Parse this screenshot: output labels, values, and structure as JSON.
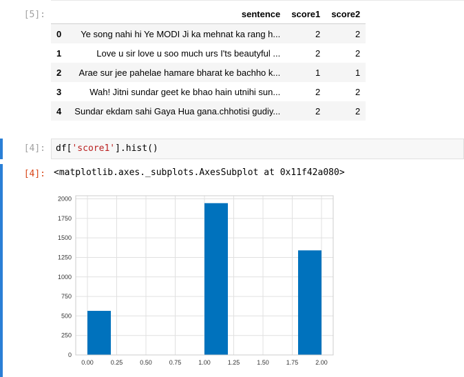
{
  "cells": [
    {
      "prompt": "[5]:",
      "table": {
        "columns": [
          "",
          "sentence",
          "score1",
          "score2"
        ],
        "rows": [
          {
            "index": "0",
            "sentence": "Ye song nahi hi Ye MODI Ji ka mehnat ka rang h...",
            "score1": "2",
            "score2": "2"
          },
          {
            "index": "1",
            "sentence": "Love u sir love u soo much urs I'ts beautyful ...",
            "score1": "2",
            "score2": "2"
          },
          {
            "index": "2",
            "sentence": "Arae sur jee pahelae hamare bharat ke bachho k...",
            "score1": "1",
            "score2": "1"
          },
          {
            "index": "3",
            "sentence": "Wah! Jitni sundar geet ke bhao hain utnihi sun...",
            "score1": "2",
            "score2": "2"
          },
          {
            "index": "4",
            "sentence": "Sundar ekdam sahi Gaya Hua gana.chhotisi gudiy...",
            "score1": "2",
            "score2": "2"
          }
        ]
      }
    },
    {
      "prompt_in": "[4]:",
      "code": {
        "var": "df[",
        "key": "'score1'",
        "rest": "].hist()"
      },
      "prompt_out": "[4]:",
      "output_text": "<matplotlib.axes._subplots.AxesSubplot at 0x11f42a080>"
    }
  ],
  "chart_data": {
    "type": "bar",
    "bins": [
      {
        "x0": 0.0,
        "x1": 0.2,
        "value": 565
      },
      {
        "x0": 0.2,
        "x1": 0.4,
        "value": 0
      },
      {
        "x0": 0.4,
        "x1": 0.6,
        "value": 0
      },
      {
        "x0": 0.6,
        "x1": 0.8,
        "value": 0
      },
      {
        "x0": 0.8,
        "x1": 1.0,
        "value": 0
      },
      {
        "x0": 1.0,
        "x1": 1.2,
        "value": 1945
      },
      {
        "x0": 1.2,
        "x1": 1.4,
        "value": 0
      },
      {
        "x0": 1.4,
        "x1": 1.6,
        "value": 0
      },
      {
        "x0": 1.6,
        "x1": 1.8,
        "value": 0
      },
      {
        "x0": 1.8,
        "x1": 2.0,
        "value": 1340
      }
    ],
    "xticks": [
      "0.00",
      "0.25",
      "0.50",
      "0.75",
      "1.00",
      "1.25",
      "1.50",
      "1.75",
      "2.00"
    ],
    "yticks": [
      "0",
      "250",
      "500",
      "750",
      "1000",
      "1250",
      "1500",
      "1750",
      "2000"
    ],
    "xlim": [
      -0.1,
      2.1
    ],
    "ylim": [
      0,
      2040
    ],
    "grid": true,
    "bar_color": "#0072bd"
  }
}
